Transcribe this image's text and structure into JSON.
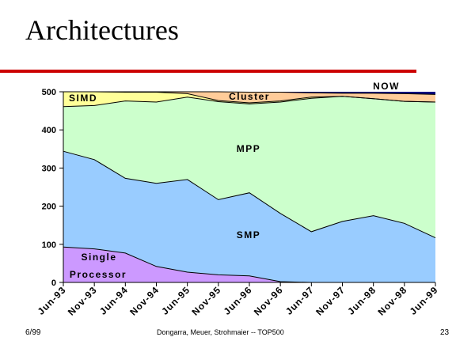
{
  "slide": {
    "title": "Architectures",
    "footer_left": "6/99",
    "footer_center": "Dongarra, Meuer, Strohmaier -- TOP500",
    "footer_right": "23"
  },
  "chart_data": {
    "type": "area",
    "stacked": true,
    "categories": [
      "Jun-93",
      "Nov-93",
      "Jun-94",
      "Nov-94",
      "Jun-95",
      "Nov-95",
      "Jun-96",
      "Nov-96",
      "Jun-97",
      "Nov-97",
      "Jun-98",
      "Nov-98",
      "Jun-99"
    ],
    "ylim": [
      0,
      500
    ],
    "yticks": [
      0,
      100,
      200,
      300,
      400,
      500
    ],
    "grid": false,
    "series": [
      {
        "name": "Single Processor",
        "color": "#cc99ff",
        "label_lines": [
          "Single",
          "Processor"
        ],
        "values": [
          93,
          88,
          77,
          42,
          27,
          20,
          17,
          2,
          0,
          0,
          0,
          0,
          0
        ]
      },
      {
        "name": "SMP",
        "color": "#99ccff",
        "label_lines": [
          "SMP"
        ],
        "values": [
          251,
          234,
          196,
          218,
          243,
          197,
          218,
          179,
          133,
          160,
          175,
          155,
          117
        ]
      },
      {
        "name": "MPP",
        "color": "#ccffcc",
        "label_lines": [
          "MPP"
        ],
        "values": [
          117,
          142,
          203,
          213,
          216,
          257,
          233,
          292,
          350,
          328,
          307,
          320,
          356
        ]
      },
      {
        "name": "SIMD",
        "color": "#ffff99",
        "label_lines": [
          "SIMD"
        ],
        "values": [
          39,
          36,
          23,
          26,
          9,
          3,
          3,
          3,
          3,
          0,
          0,
          0,
          0
        ]
      },
      {
        "name": "Cluster",
        "color": "#ffcc99",
        "label_lines": [
          "Cluster"
        ],
        "values": [
          0,
          0,
          1,
          1,
          5,
          23,
          28,
          23,
          11,
          8,
          14,
          20,
          20
        ]
      },
      {
        "name": "NOW",
        "color": "#000080",
        "label_lines": [
          "NOW"
        ],
        "values": [
          0,
          0,
          0,
          0,
          0,
          0,
          1,
          1,
          3,
          4,
          4,
          5,
          7
        ]
      }
    ]
  }
}
